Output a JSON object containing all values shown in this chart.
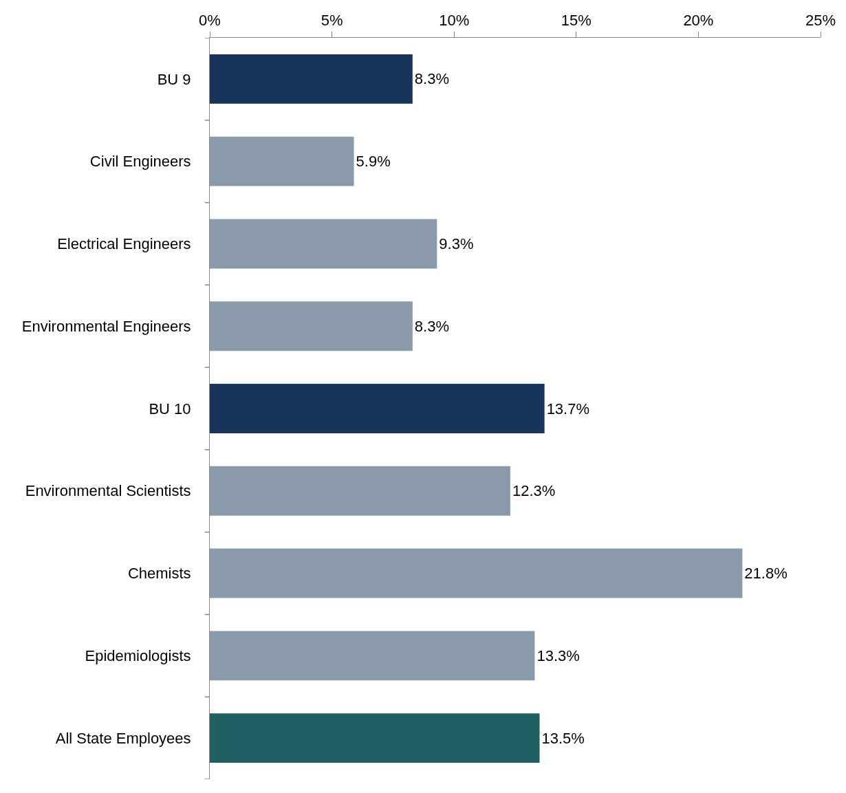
{
  "chart_data": {
    "type": "bar",
    "orientation": "horizontal",
    "categories": [
      "BU 9",
      "Civil Engineers",
      "Electrical Engineers",
      "Environmental Engineers",
      "BU 10",
      "Environmental Scientists",
      "Chemists",
      "Epidemiologists",
      "All State Employees"
    ],
    "values": [
      8.3,
      5.9,
      9.3,
      8.3,
      13.7,
      12.3,
      21.8,
      13.3,
      13.5
    ],
    "colors": [
      "#17355a",
      "#8a9aab",
      "#8a9aab",
      "#8a9aab",
      "#17355a",
      "#8a9aab",
      "#8a9aab",
      "#8a9aab",
      "#215f63"
    ],
    "value_labels": [
      "8.3%",
      "5.9%",
      "9.3%",
      "8.3%",
      "13.7%",
      "12.3%",
      "21.8%",
      "13.3%",
      "13.5%"
    ],
    "xlim": [
      0,
      25
    ],
    "xticks": [
      {
        "value": 0,
        "label": "0%"
      },
      {
        "value": 5,
        "label": "5%"
      },
      {
        "value": 10,
        "label": "10%"
      },
      {
        "value": 15,
        "label": "15%"
      },
      {
        "value": 20,
        "label": "20%"
      },
      {
        "value": 25,
        "label": "25%"
      }
    ],
    "grid": false,
    "legend": false
  }
}
